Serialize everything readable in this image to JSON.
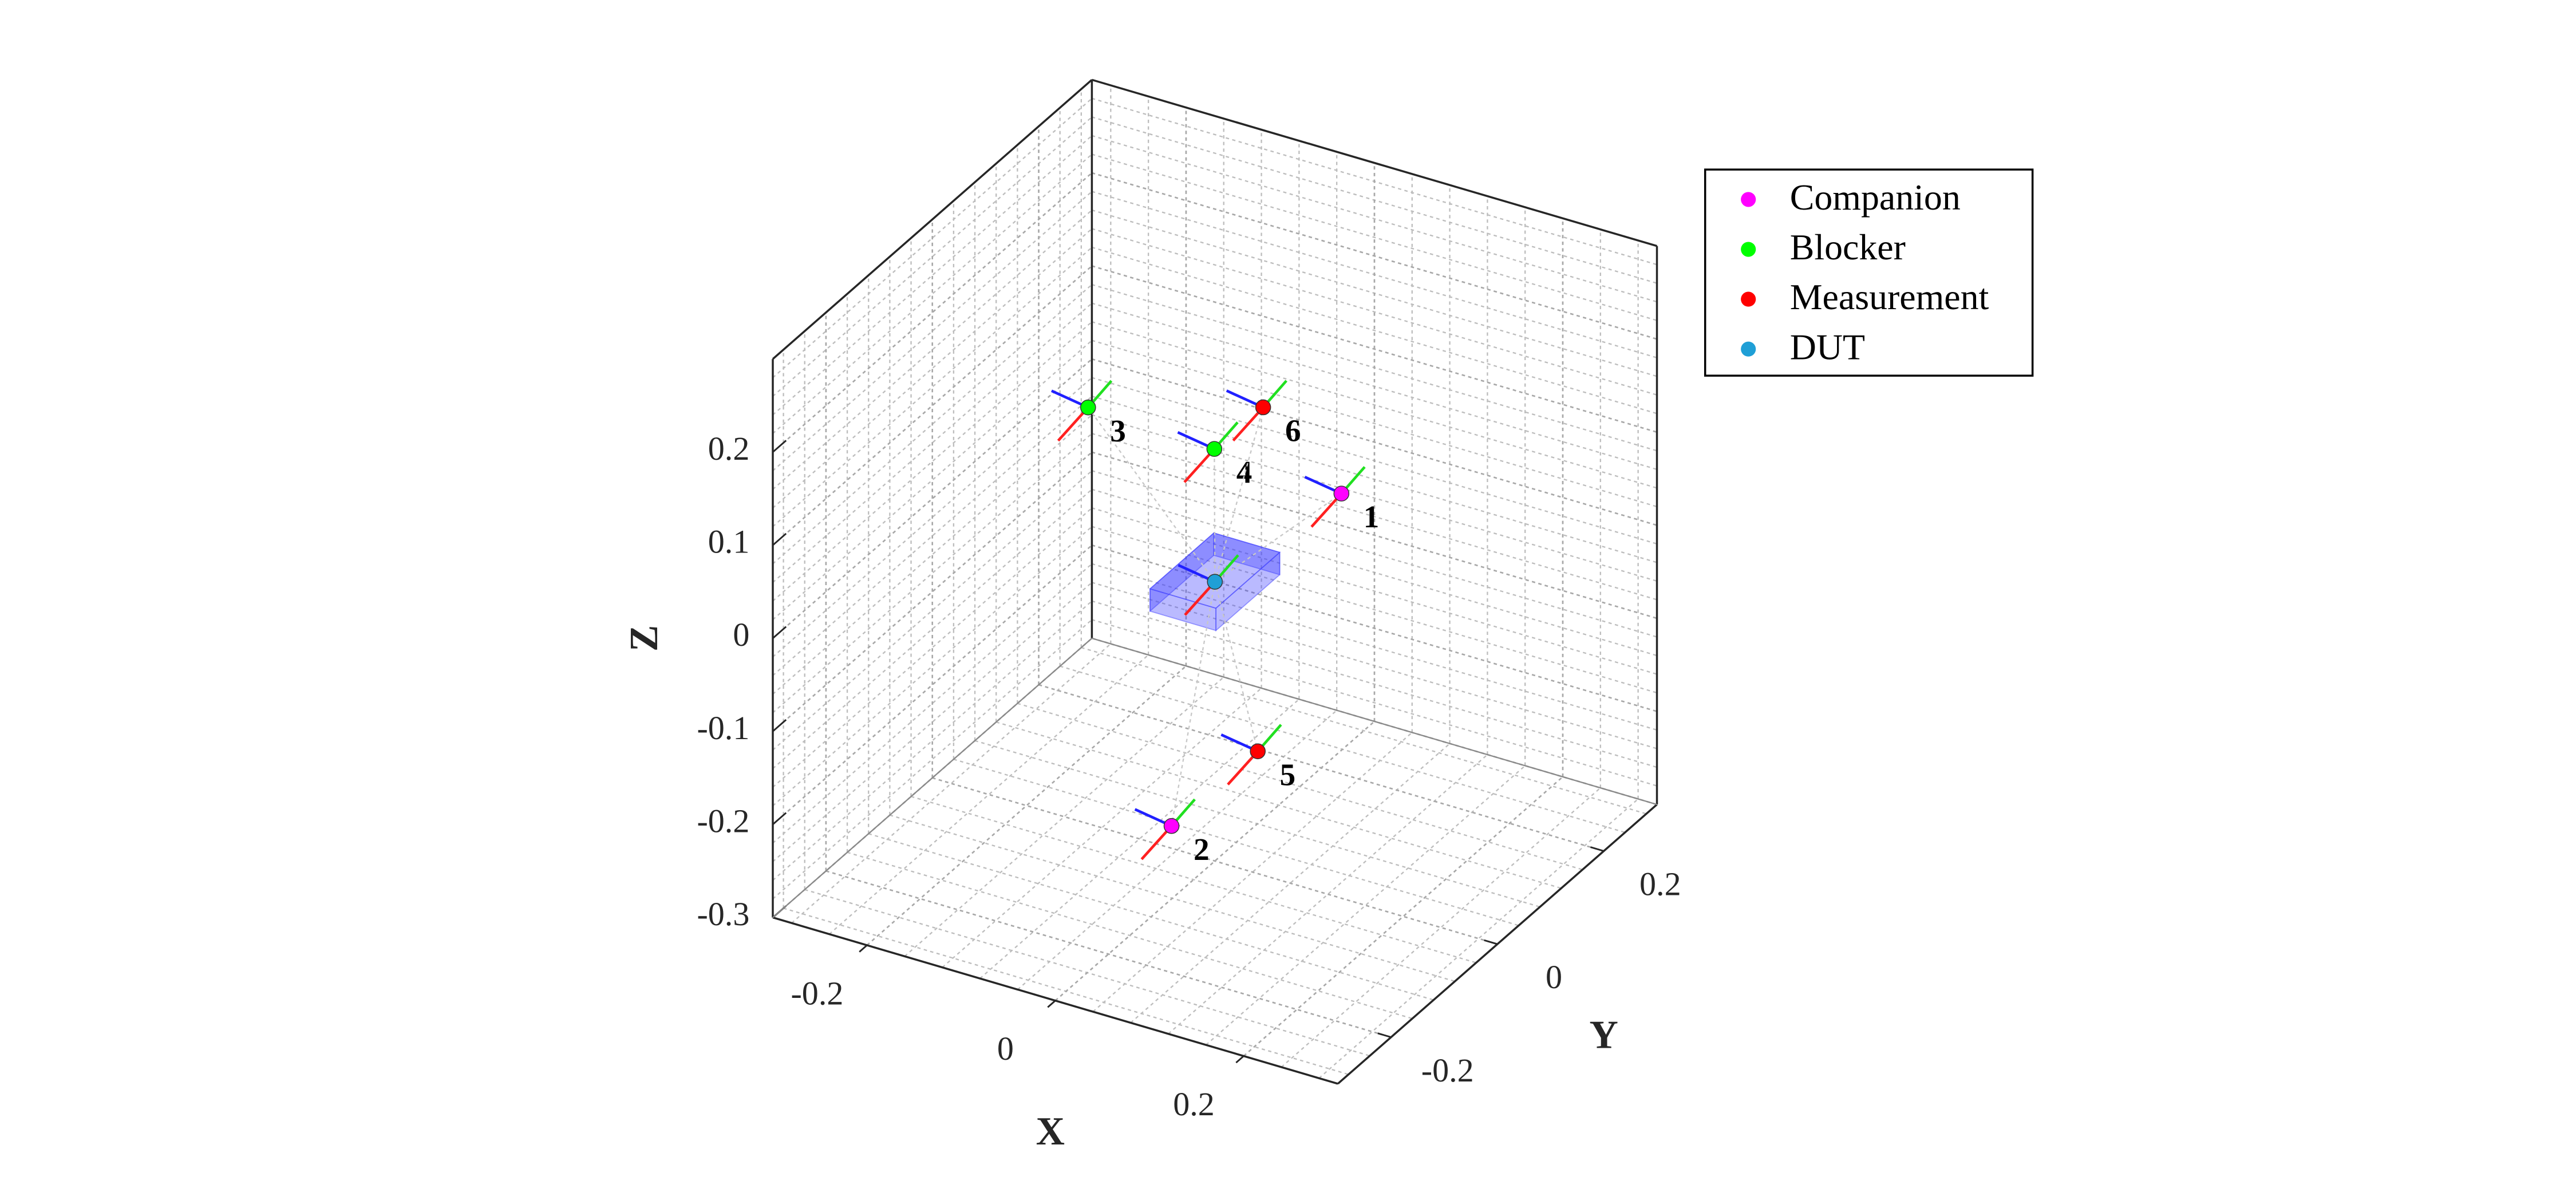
{
  "chart_data": {
    "type": "scatter3d",
    "xlabel": "X",
    "ylabel": "Y",
    "zlabel": "Z",
    "xlim": [
      -0.3,
      0.3
    ],
    "ylim": [
      -0.3,
      0.3
    ],
    "zlim": [
      -0.3,
      0.3
    ],
    "xticks": [
      -0.2,
      0,
      0.2
    ],
    "yticks": [
      -0.2,
      0,
      0.2
    ],
    "zticks": [
      -0.3,
      -0.2,
      -0.1,
      0,
      0.1,
      0.2
    ],
    "grid": true,
    "minor_grid": true,
    "legend": "northeast",
    "series": [
      {
        "name": "Companion",
        "color": "#ff00ff",
        "x": [
          0.105,
          -0.024
        ],
        "y": [
          0.052,
          -0.039
        ],
        "z": [
          0.1,
          -0.25
        ],
        "point_labels": [
          "1",
          "2"
        ]
      },
      {
        "name": "Blocker",
        "color": "#00ff00",
        "x": [
          -0.09,
          0.048
        ],
        "y": [
          -0.079,
          -0.086
        ],
        "z": [
          0.2,
          0.2
        ],
        "point_labels": [
          "3",
          "4"
        ]
      },
      {
        "name": "Measurement",
        "color": "#ff0000",
        "x": [
          0.019,
          0.049
        ],
        "y": [
          0.047,
          0.004
        ],
        "z": [
          -0.2,
          0.2
        ],
        "point_labels": [
          "5",
          "6"
        ]
      },
      {
        "name": "DUT",
        "color": "#1f9fd6",
        "x": [
          0
        ],
        "y": [
          0
        ],
        "z": [
          0
        ]
      }
    ]
  }
}
